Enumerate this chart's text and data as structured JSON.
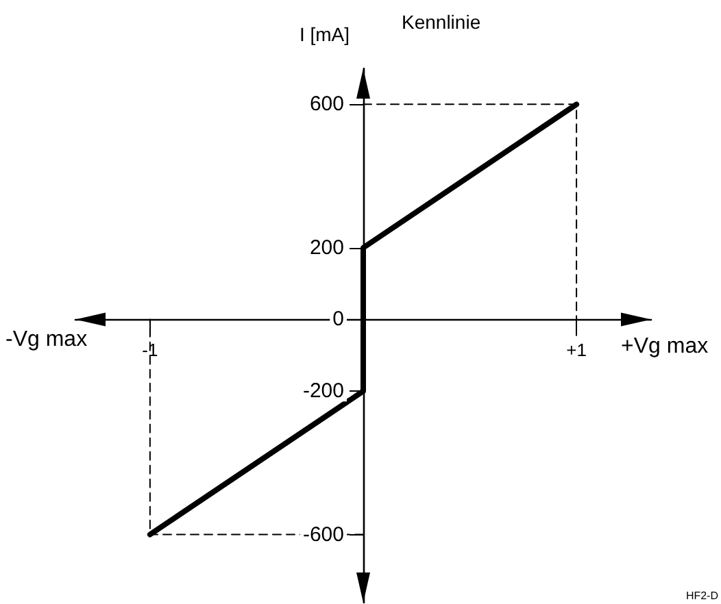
{
  "chart_data": {
    "type": "line",
    "title": "Kennlinie",
    "xlabel": "+Vg max",
    "ylabel": "I [mA]",
    "annotations": [
      "-Vg max",
      "HF2-D"
    ],
    "xlim": [
      -1.35,
      1.35
    ],
    "ylim": [
      -790,
      700
    ],
    "xticks": [
      {
        "value": -1,
        "label": "-1"
      },
      {
        "value": 1,
        "label": "+1"
      }
    ],
    "yticks": [
      -600,
      -200,
      0,
      200,
      600
    ],
    "grid": false,
    "marker": "none",
    "series": [
      {
        "color": "#000000",
        "x": [
          -1,
          0,
          0,
          1
        ],
        "values": [
          -600,
          -200,
          200,
          600
        ],
        "line_style": "solid"
      },
      {
        "color": "#000000",
        "x": [
          0,
          1,
          1
        ],
        "values": [
          600,
          600,
          0
        ],
        "line_style": "dashed"
      },
      {
        "color": "#000000",
        "x": [
          0,
          -1,
          -1
        ],
        "values": [
          -600,
          -600,
          0
        ],
        "line_style": "dashed"
      }
    ]
  }
}
